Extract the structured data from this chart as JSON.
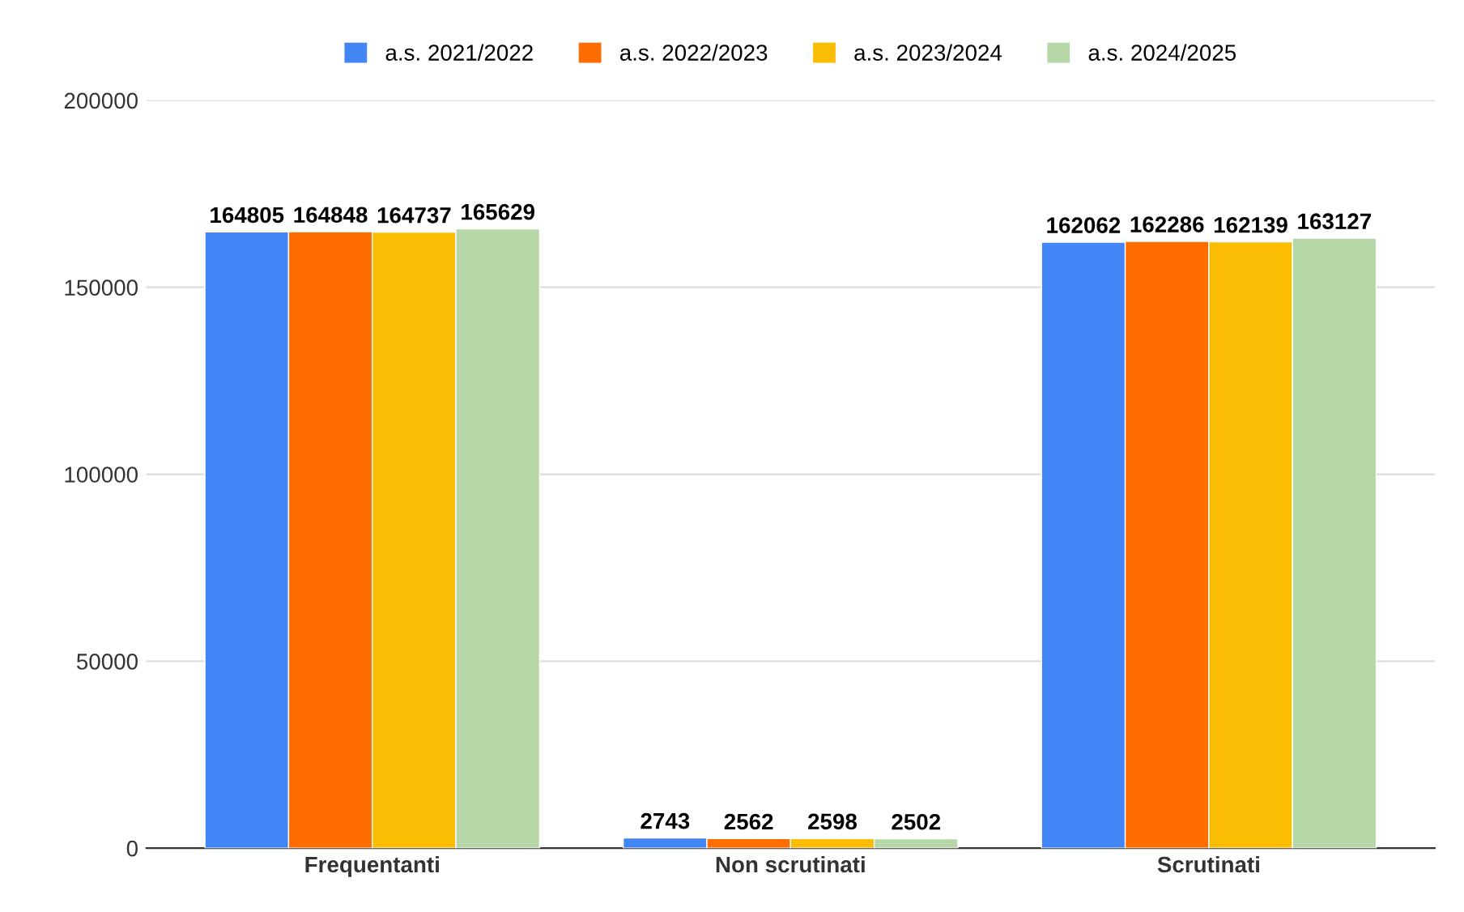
{
  "chart_data": {
    "type": "bar",
    "categories": [
      "Frequentanti",
      "Non scrutinati",
      "Scrutinati"
    ],
    "series": [
      {
        "name": "a.s. 2021/2022",
        "color": "#4285f4",
        "values": [
          164805,
          2743,
          162062
        ]
      },
      {
        "name": "a.s. 2022/2023",
        "color": "#ff6d01",
        "values": [
          164848,
          2562,
          162286
        ]
      },
      {
        "name": "a.s. 2023/2024",
        "color": "#fbbc04",
        "values": [
          164737,
          2598,
          162139
        ]
      },
      {
        "name": "a.s. 2024/2025",
        "color": "#b6d7a8",
        "values": [
          165629,
          2502,
          163127
        ]
      }
    ],
    "ylim": [
      0,
      200000
    ],
    "yticks": [
      0,
      50000,
      100000,
      150000,
      200000
    ],
    "grid": "y",
    "legend": "top",
    "data_labels": true
  }
}
